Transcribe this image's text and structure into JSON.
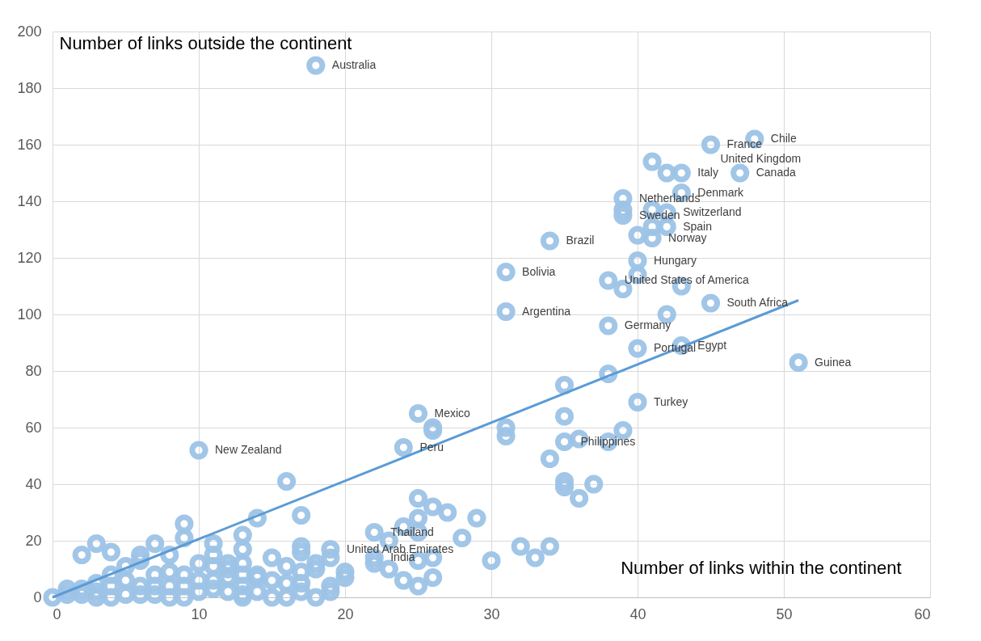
{
  "chart_data": {
    "type": "scatter",
    "xlabel": "Number of links within the continent",
    "ylabel": "Number of links outside the continent",
    "xlim": [
      0,
      60
    ],
    "xticks": [
      0,
      10,
      20,
      30,
      40,
      50,
      60
    ],
    "ylim": [
      0,
      200
    ],
    "yticks": [
      0,
      20,
      40,
      60,
      80,
      100,
      120,
      140,
      160,
      180,
      200
    ],
    "grid": true,
    "marker": "circle",
    "series": [
      {
        "color": "#9dc3e6",
        "x": [
          18,
          48,
          45,
          41,
          42,
          43,
          47,
          43,
          39,
          39,
          39,
          41,
          42,
          41,
          42,
          40,
          41,
          34,
          40,
          31,
          38,
          40,
          39,
          43,
          45,
          31,
          42,
          38,
          40,
          43,
          51,
          38,
          35,
          40,
          25,
          26,
          26,
          31,
          31,
          35,
          24,
          10,
          35,
          36,
          38,
          39,
          34,
          35,
          35,
          37,
          36,
          16,
          9,
          9,
          14,
          17,
          13,
          11,
          3,
          7,
          2,
          4,
          6,
          8,
          6,
          5,
          22,
          25,
          26,
          27,
          29,
          25,
          24,
          25,
          23,
          28,
          22,
          22,
          23,
          24,
          25,
          26,
          26,
          25,
          30,
          32,
          33,
          34,
          19,
          19,
          18,
          18,
          17,
          17,
          17,
          17,
          17,
          18,
          19,
          19,
          20,
          20,
          15,
          15,
          15,
          16,
          16,
          16,
          14,
          14,
          14,
          13,
          13,
          13,
          13,
          13,
          13,
          12,
          12,
          12,
          12,
          11,
          11,
          11,
          11,
          10,
          10,
          10,
          9,
          9,
          9,
          8,
          8,
          8,
          7,
          7,
          7,
          6,
          6,
          5,
          5,
          4,
          4,
          4,
          3,
          3,
          3,
          2,
          2,
          1,
          1,
          0
        ],
        "values": [
          188,
          162,
          160,
          154,
          150,
          150,
          150,
          143,
          141,
          137,
          135,
          137,
          136,
          131,
          131,
          128,
          127,
          126,
          119,
          115,
          112,
          114,
          109,
          110,
          104,
          101,
          100,
          96,
          88,
          89,
          83,
          79,
          75,
          69,
          65,
          60,
          59,
          60,
          57,
          64,
          53,
          52,
          55,
          56,
          55,
          59,
          49,
          41,
          39,
          40,
          35,
          41,
          26,
          21,
          28,
          29,
          22,
          19,
          19,
          19,
          15,
          16,
          15,
          15,
          13,
          11,
          23,
          35,
          32,
          30,
          28,
          28,
          25,
          23,
          20,
          21,
          14,
          12,
          10,
          6,
          4,
          7,
          14,
          13,
          13,
          18,
          14,
          18,
          17,
          14,
          12,
          10,
          18,
          16,
          9,
          5,
          2,
          0,
          4,
          2,
          9,
          7,
          14,
          6,
          0,
          11,
          5,
          0,
          8,
          7,
          2,
          17,
          12,
          8,
          4,
          1,
          0,
          12,
          10,
          7,
          2,
          15,
          11,
          6,
          3,
          12,
          6,
          2,
          8,
          4,
          0,
          9,
          4,
          0,
          8,
          4,
          1,
          4,
          1,
          6,
          1,
          8,
          4,
          0,
          5,
          2,
          0,
          3,
          1,
          3,
          1,
          0
        ]
      },
      {
        "type": "line",
        "marker": "none",
        "color": "#5b9bd5",
        "x": [
          0,
          51
        ],
        "values": [
          0,
          105
        ]
      }
    ],
    "annotations": [
      {
        "text": "Australia",
        "x": 18,
        "y": 188
      },
      {
        "text": "Chile",
        "x": 48,
        "y": 162
      },
      {
        "text": "France",
        "x": 45,
        "y": 160
      },
      {
        "text": "United Kingdom",
        "x": 45,
        "y": 160
      },
      {
        "text": "Italy",
        "x": 43,
        "y": 150
      },
      {
        "text": "Canada",
        "x": 47,
        "y": 150
      },
      {
        "text": "Denmark",
        "x": 43,
        "y": 143
      },
      {
        "text": "Netherlands",
        "x": 39,
        "y": 141
      },
      {
        "text": "Switzerland",
        "x": 42,
        "y": 136
      },
      {
        "text": "Sweden",
        "x": 39,
        "y": 135
      },
      {
        "text": "Spain",
        "x": 42,
        "y": 131
      },
      {
        "text": "Norway",
        "x": 41,
        "y": 127
      },
      {
        "text": "Brazil",
        "x": 34,
        "y": 126
      },
      {
        "text": "Hungary",
        "x": 40,
        "y": 119
      },
      {
        "text": "Bolivia",
        "x": 31,
        "y": 115
      },
      {
        "text": "United States of America",
        "x": 38,
        "y": 112
      },
      {
        "text": "South Africa",
        "x": 45,
        "y": 104
      },
      {
        "text": "Argentina",
        "x": 31,
        "y": 101
      },
      {
        "text": "Germany",
        "x": 38,
        "y": 96
      },
      {
        "text": "Portugal",
        "x": 40,
        "y": 88
      },
      {
        "text": "Egypt",
        "x": 43,
        "y": 89
      },
      {
        "text": "Guinea",
        "x": 51,
        "y": 83
      },
      {
        "text": "Turkey",
        "x": 40,
        "y": 69
      },
      {
        "text": "Mexico",
        "x": 25,
        "y": 65
      },
      {
        "text": "Peru",
        "x": 24,
        "y": 53
      },
      {
        "text": "New Zealand",
        "x": 10,
        "y": 52
      },
      {
        "text": "Philippines",
        "x": 35,
        "y": 55
      },
      {
        "text": "Thailand",
        "x": 22,
        "y": 23
      },
      {
        "text": "United Arab Emirates",
        "x": 19,
        "y": 17
      },
      {
        "text": "India",
        "x": 22,
        "y": 14
      }
    ]
  }
}
